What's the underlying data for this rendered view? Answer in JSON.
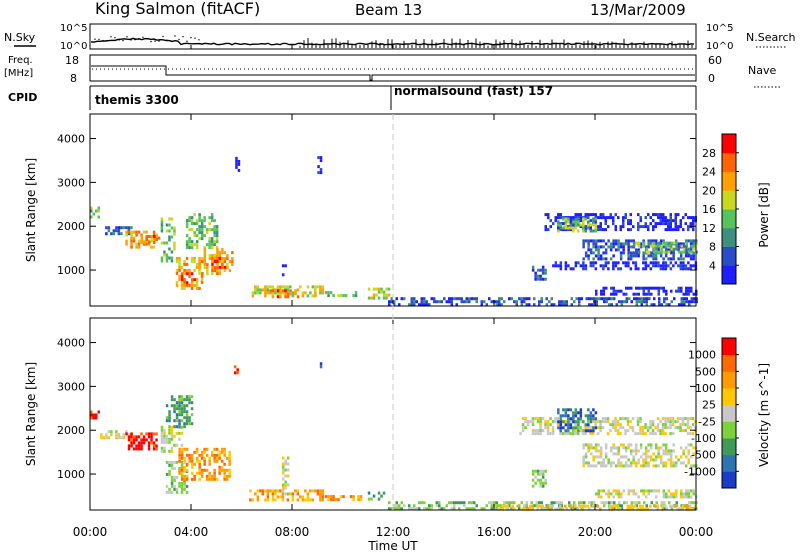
{
  "header": {
    "station": "King Salmon (fitACF)",
    "beam": "Beam 13",
    "date": "13/Mar/2009"
  },
  "top_panels": {
    "nsky_label": "N.Sky",
    "nsearch_label": "N.Search",
    "noise_ticks_left": [
      "10^5",
      "10^0"
    ],
    "noise_ticks_right": [
      "10^5",
      "10^0"
    ],
    "freq_label_line1": "Freq.",
    "freq_label_line2": "[MHz]",
    "freq_ticks": [
      "18",
      "8"
    ],
    "nave_label": "Nave",
    "nave_ticks": [
      "60",
      "0"
    ],
    "cpid_label": "CPID",
    "cpid_segments": [
      "themis 3300",
      "normalsound (fast) 157"
    ]
  },
  "chart_data": [
    {
      "type": "heatmap",
      "title": "",
      "ylabel": "Slant Range [km]",
      "xlabel": "",
      "ylim": [
        180,
        4560
      ],
      "yticks": [
        "1000",
        "2000",
        "3000",
        "4000"
      ],
      "colorbar": {
        "label": "Power [dB]",
        "ticks": [
          "4",
          "8",
          "12",
          "16",
          "20",
          "24",
          "28"
        ],
        "colors": [
          "#1e1eff",
          "#2a4cc8",
          "#3f8f7e",
          "#58c35a",
          "#c8d81e",
          "#ff9f00",
          "#ff6400",
          "#ff0000"
        ]
      },
      "patches": [
        {
          "t0": 0.0,
          "t1": 0.3,
          "r0": 2200,
          "r1": 2450,
          "level": 3
        },
        {
          "t0": 0.4,
          "t1": 1.6,
          "r0": 1800,
          "r1": 2000,
          "level": 1
        },
        {
          "t0": 1.4,
          "t1": 2.7,
          "r0": 1550,
          "r1": 1900,
          "level": 5
        },
        {
          "t0": 2.0,
          "t1": 2.6,
          "r0": 1650,
          "r1": 1800,
          "level": 6
        },
        {
          "t0": 2.8,
          "t1": 3.3,
          "r0": 1200,
          "r1": 2200,
          "level": 3
        },
        {
          "t0": 3.4,
          "t1": 4.4,
          "r0": 600,
          "r1": 1300,
          "level": 5
        },
        {
          "t0": 3.6,
          "t1": 4.1,
          "r0": 700,
          "r1": 950,
          "level": 7
        },
        {
          "t0": 3.8,
          "t1": 5.0,
          "r0": 1500,
          "r1": 2300,
          "level": 3
        },
        {
          "t0": 4.3,
          "t1": 5.6,
          "r0": 900,
          "r1": 1500,
          "level": 5
        },
        {
          "t0": 4.8,
          "t1": 5.3,
          "r0": 1050,
          "r1": 1300,
          "level": 6
        },
        {
          "t0": 5.75,
          "t1": 5.85,
          "r0": 3250,
          "r1": 3650,
          "level": 0
        },
        {
          "t0": 6.3,
          "t1": 9.2,
          "r0": 380,
          "r1": 650,
          "level": 4
        },
        {
          "t0": 7.0,
          "t1": 8.2,
          "r0": 420,
          "r1": 560,
          "level": 6
        },
        {
          "t0": 7.6,
          "t1": 7.7,
          "r0": 900,
          "r1": 1200,
          "level": 1
        },
        {
          "t0": 9.0,
          "t1": 9.1,
          "r0": 3250,
          "r1": 3600,
          "level": 0
        },
        {
          "t0": 9.3,
          "t1": 10.7,
          "r0": 400,
          "r1": 520,
          "level": 3
        },
        {
          "t0": 11.0,
          "t1": 11.8,
          "r0": 350,
          "r1": 600,
          "level": 4
        },
        {
          "t0": 11.8,
          "t1": 24.0,
          "r0": 190,
          "r1": 380,
          "level": 1
        },
        {
          "t0": 17.5,
          "t1": 18.0,
          "r0": 800,
          "r1": 1100,
          "level": 1
        },
        {
          "t0": 18.0,
          "t1": 24.0,
          "r0": 1900,
          "r1": 2300,
          "level": 0
        },
        {
          "t0": 18.5,
          "t1": 20.0,
          "r0": 1900,
          "r1": 2200,
          "level": 3
        },
        {
          "t0": 19.5,
          "t1": 24.0,
          "r0": 1250,
          "r1": 1700,
          "level": 1
        },
        {
          "t0": 21.5,
          "t1": 24.0,
          "r0": 1400,
          "r1": 1650,
          "level": 3
        },
        {
          "t0": 18.3,
          "t1": 24.0,
          "r0": 1000,
          "r1": 1200,
          "level": 0
        },
        {
          "t0": 20.0,
          "t1": 24.0,
          "r0": 450,
          "r1": 620,
          "level": 0
        }
      ]
    },
    {
      "type": "heatmap",
      "title": "",
      "ylabel": "Slant Range [km]",
      "xlabel": "Time UT",
      "ylim": [
        180,
        4560
      ],
      "yticks": [
        "1000",
        "2000",
        "3000",
        "4000"
      ],
      "xticks": [
        "00:00",
        "04:00",
        "08:00",
        "12:00",
        "16:00",
        "20:00",
        "00:00"
      ],
      "xlim_hours": [
        0,
        24
      ],
      "colorbar": {
        "label": "Velocity [m s^-1]",
        "ticks": [
          "1000",
          "500",
          "100",
          "25",
          "-25",
          "-100",
          "-500",
          "-1000"
        ],
        "colors": [
          "#1a3cc8",
          "#2e74b0",
          "#3f9a5a",
          "#7dd23c",
          "#c8c8c8",
          "#ffc800",
          "#ff9a00",
          "#ff6a00",
          "#ff0000"
        ]
      },
      "patches": [
        {
          "t0": 0.0,
          "t1": 0.3,
          "r0": 2250,
          "r1": 2450,
          "level": 8
        },
        {
          "t0": 0.4,
          "t1": 1.6,
          "r0": 1850,
          "r1": 2000,
          "level": 4
        },
        {
          "t0": 1.4,
          "t1": 2.6,
          "r0": 1550,
          "r1": 1950,
          "level": 8
        },
        {
          "t0": 2.8,
          "t1": 3.6,
          "r0": 1500,
          "r1": 2100,
          "level": 4
        },
        {
          "t0": 3.0,
          "t1": 3.8,
          "r0": 600,
          "r1": 1300,
          "level": 3
        },
        {
          "t0": 3.5,
          "t1": 5.5,
          "r0": 850,
          "r1": 1600,
          "level": 6
        },
        {
          "t0": 3.0,
          "t1": 4.0,
          "r0": 2100,
          "r1": 2800,
          "level": 2
        },
        {
          "t0": 5.7,
          "t1": 5.8,
          "r0": 3300,
          "r1": 3550,
          "level": 8
        },
        {
          "t0": 6.3,
          "t1": 9.2,
          "r0": 380,
          "r1": 650,
          "level": 6
        },
        {
          "t0": 7.6,
          "t1": 7.8,
          "r0": 550,
          "r1": 1400,
          "level": 4
        },
        {
          "t0": 9.0,
          "t1": 9.1,
          "r0": 3300,
          "r1": 3550,
          "level": 0
        },
        {
          "t0": 9.3,
          "t1": 10.7,
          "r0": 400,
          "r1": 520,
          "level": 6
        },
        {
          "t0": 11.0,
          "t1": 11.7,
          "r0": 400,
          "r1": 600,
          "level": 2
        },
        {
          "t0": 11.8,
          "t1": 24.0,
          "r0": 190,
          "r1": 380,
          "level": 3
        },
        {
          "t0": 16.0,
          "t1": 24.0,
          "r0": 190,
          "r1": 300,
          "level": 5
        },
        {
          "t0": 17.5,
          "t1": 18.0,
          "r0": 750,
          "r1": 1100,
          "level": 3
        },
        {
          "t0": 17.0,
          "t1": 24.0,
          "r0": 1900,
          "r1": 2300,
          "level": 4
        },
        {
          "t0": 18.5,
          "t1": 20.0,
          "r0": 2000,
          "r1": 2500,
          "level": 1
        },
        {
          "t0": 19.5,
          "t1": 24.0,
          "r0": 1200,
          "r1": 1700,
          "level": 4
        },
        {
          "t0": 20.0,
          "t1": 24.0,
          "r0": 450,
          "r1": 650,
          "level": 4
        }
      ]
    }
  ]
}
